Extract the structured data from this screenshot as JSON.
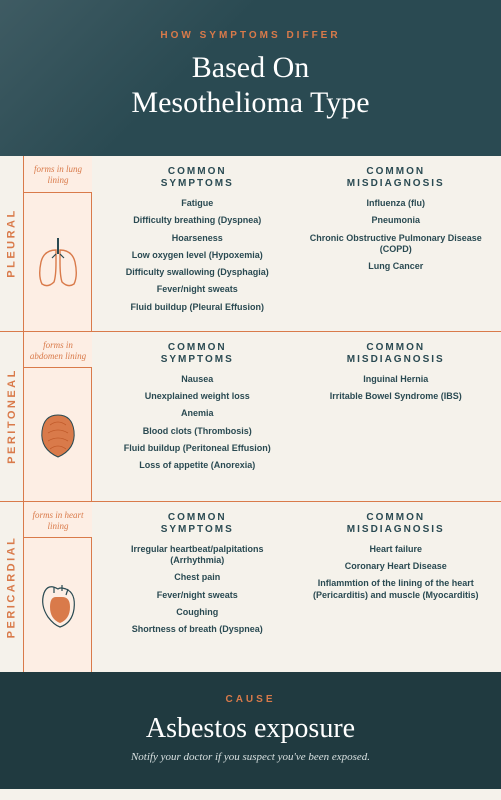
{
  "header": {
    "eyebrow": "HOW SYMPTOMS DIFFER",
    "title_line1": "Based On",
    "title_line2": "Mesothelioma Type"
  },
  "columns": {
    "symptoms_head": "COMMON SYMPTOMS",
    "misdiag_head": "COMMON MISDIAGNOSIS"
  },
  "rows": [
    {
      "label": "PLEURAL",
      "forms": "forms in lung lining",
      "icon": "lungs",
      "symptoms": [
        "Fatigue",
        "Difficulty breathing (Dyspnea)",
        "Hoarseness",
        "Low oxygen level (Hypoxemia)",
        "Difficulty swallowing (Dysphagia)",
        "Fever/night sweats",
        "Fluid buildup (Pleural Effusion)"
      ],
      "misdiag": [
        "Influenza (flu)",
        "Pneumonia",
        "Chronic Obstructive Pulmonary Disease (COPD)",
        "Lung Cancer"
      ]
    },
    {
      "label": "PERITONEAL",
      "forms": "forms in abdomen lining",
      "icon": "abdomen",
      "symptoms": [
        "Nausea",
        "Unexplained weight loss",
        "Anemia",
        "Blood clots (Thrombosis)",
        "Fluid buildup (Peritoneal Effusion)",
        "Loss of appetite (Anorexia)"
      ],
      "misdiag": [
        "Inguinal Hernia",
        "Irritable Bowel Syndrome (IBS)"
      ]
    },
    {
      "label": "PERICARDIAL",
      "forms": "forms in heart lining",
      "icon": "heart",
      "symptoms": [
        "Irregular heartbeat/palpitations (Arrhythmia)",
        "Chest pain",
        "Fever/night sweats",
        "Coughing",
        "Shortness of breath (Dyspnea)"
      ],
      "misdiag": [
        "Heart failure",
        "Coronary Heart Disease",
        "Inflammtion of the lining of the heart (Pericarditis) and muscle (Myocarditis)"
      ]
    }
  ],
  "footer": {
    "eyebrow": "CAUSE",
    "title": "Asbestos exposure",
    "note": "Notify your doctor if you suspect you've been exposed."
  },
  "colors": {
    "accent": "#d97a4a",
    "darkbg": "#2a4a52",
    "panel": "#fdeee4",
    "page": "#f5f2eb"
  }
}
